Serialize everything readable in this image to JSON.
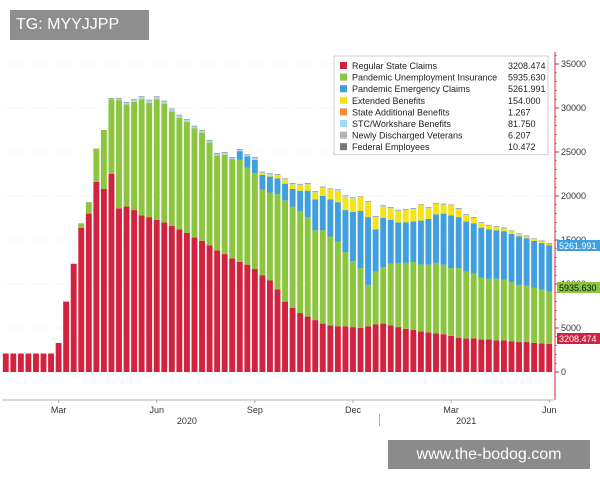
{
  "watermark_top": "TG: MYYJJPP",
  "watermark_bottom": "www.the-bodog.com",
  "chart_data": {
    "type": "bar",
    "stacked": true,
    "title": "",
    "xlabel": "",
    "ylabel": "",
    "ylim": [
      -3000,
      36000
    ],
    "y_ticks": [
      0,
      5000,
      10000,
      15000,
      20000,
      25000,
      30000,
      35000
    ],
    "y_tick_labels": [
      "0",
      "5000",
      "10000",
      "15000",
      "20000",
      "25000",
      "30000",
      "35000"
    ],
    "x_month_labels": [
      {
        "label": "Mar",
        "index": 7
      },
      {
        "label": "Jun",
        "index": 20
      },
      {
        "label": "Sep",
        "index": 33
      },
      {
        "label": "Dec",
        "index": 46
      },
      {
        "label": "Mar",
        "index": 59
      },
      {
        "label": "Jun",
        "index": 72
      }
    ],
    "x_year_labels": [
      {
        "label": "2020",
        "index": 24
      },
      {
        "label": "2021",
        "index": 61
      }
    ],
    "legend_position": "top-right",
    "series": [
      {
        "name": "Regular State Claims",
        "color": "#d1233f",
        "last": "3208.474",
        "values": [
          2100,
          2100,
          2100,
          2100,
          2100,
          2100,
          2100,
          3300,
          8000,
          12300,
          16400,
          18000,
          21600,
          20800,
          22500,
          18600,
          18800,
          18400,
          17800,
          17600,
          17300,
          17000,
          16600,
          16200,
          15800,
          15300,
          14900,
          14400,
          13800,
          13400,
          12900,
          12500,
          12200,
          11700,
          11000,
          10400,
          9400,
          8000,
          7300,
          6700,
          6300,
          5900,
          5500,
          5300,
          5200,
          5200,
          5100,
          5000,
          5200,
          5400,
          5500,
          5300,
          5100,
          4900,
          4800,
          4600,
          4500,
          4400,
          4300,
          4100,
          3900,
          3800,
          3800,
          3700,
          3700,
          3600,
          3600,
          3500,
          3400,
          3400,
          3300,
          3250,
          3208
        ]
      },
      {
        "name": "Pandemic Unemployment Insurance",
        "color": "#8cc63f",
        "last": "5935.630",
        "values": [
          0,
          0,
          0,
          0,
          0,
          0,
          0,
          0,
          0,
          0,
          500,
          1300,
          3800,
          6700,
          8500,
          12300,
          11600,
          12300,
          13200,
          13000,
          13700,
          13500,
          13000,
          12700,
          12600,
          12400,
          12300,
          11700,
          10800,
          11300,
          11300,
          11600,
          11000,
          10900,
          9700,
          10000,
          10800,
          11500,
          11500,
          11600,
          11300,
          10200,
          10600,
          10100,
          9600,
          8400,
          7500,
          6800,
          4700,
          6000,
          6400,
          7000,
          7300,
          7500,
          7700,
          7600,
          7700,
          8000,
          7900,
          7700,
          7900,
          7600,
          7400,
          7000,
          6900,
          7000,
          6900,
          6700,
          6500,
          6400,
          6300,
          6100,
          5936
        ]
      },
      {
        "name": "Pandemic Emergency Claims",
        "color": "#3f9fdf",
        "last": "5261.991",
        "values": [
          0,
          0,
          0,
          0,
          0,
          0,
          0,
          0,
          0,
          0,
          0,
          0,
          0,
          0,
          0,
          0,
          0,
          0,
          0,
          0,
          0,
          0,
          0,
          0,
          0,
          0,
          0,
          0,
          0,
          0,
          0,
          1000,
          1300,
          1500,
          1700,
          1800,
          1800,
          1900,
          2000,
          2300,
          3000,
          3500,
          3900,
          4200,
          4500,
          4800,
          5600,
          6500,
          7700,
          4800,
          5600,
          5000,
          4600,
          4600,
          4600,
          5000,
          5200,
          5500,
          5800,
          6000,
          5800,
          5700,
          5700,
          5700,
          5600,
          5500,
          5500,
          5500,
          5500,
          5400,
          5300,
          5300,
          5262
        ]
      },
      {
        "name": "Extended Benefits",
        "color": "#f5e21a",
        "last": "154.000",
        "values": [
          0,
          0,
          0,
          0,
          0,
          0,
          0,
          0,
          0,
          0,
          0,
          0,
          0,
          0,
          0,
          0,
          0,
          0,
          0,
          0,
          0,
          0,
          0,
          0,
          0,
          0,
          0,
          0,
          0,
          0,
          0,
          0,
          0,
          100,
          150,
          200,
          300,
          400,
          500,
          600,
          700,
          800,
          900,
          1100,
          1300,
          1500,
          1500,
          1500,
          1700,
          1400,
          1300,
          1300,
          1300,
          1400,
          1400,
          1700,
          1200,
          1200,
          1000,
          1100,
          900,
          700,
          600,
          500,
          400,
          350,
          300,
          250,
          220,
          200,
          180,
          170,
          154
        ]
      },
      {
        "name": "State Additional Benefits",
        "color": "#f08c3c",
        "last": "1.267",
        "values": [
          0,
          0,
          0,
          0,
          0,
          0,
          0,
          0,
          0,
          0,
          0,
          0,
          0,
          0,
          0,
          0,
          0,
          0,
          0,
          0,
          0,
          0,
          0,
          0,
          0,
          0,
          0,
          0,
          0,
          0,
          0,
          0,
          0,
          0,
          0,
          0,
          0,
          0,
          0,
          0,
          0,
          0,
          0,
          0,
          0,
          0,
          0,
          0,
          0,
          0,
          0,
          0,
          0,
          0,
          0,
          0,
          0,
          0,
          0,
          0,
          0,
          0,
          0,
          0,
          0,
          0,
          0,
          0,
          0,
          0,
          0,
          0,
          1
        ]
      },
      {
        "name": "STC/Workshare Benefits",
        "color": "#a7d8f2",
        "last": "81.750",
        "values": [
          0,
          0,
          0,
          0,
          0,
          0,
          0,
          0,
          0,
          0,
          0,
          0,
          0,
          0,
          100,
          200,
          250,
          300,
          300,
          300,
          300,
          300,
          300,
          300,
          300,
          250,
          250,
          250,
          250,
          250,
          200,
          200,
          200,
          180,
          180,
          150,
          150,
          150,
          150,
          150,
          130,
          130,
          130,
          120,
          120,
          120,
          110,
          110,
          110,
          100,
          100,
          100,
          100,
          100,
          100,
          100,
          100,
          90,
          90,
          90,
          90,
          90,
          90,
          90,
          90,
          85,
          85,
          85,
          85,
          85,
          85,
          82,
          82
        ]
      },
      {
        "name": "Newly Discharged Veterans",
        "color": "#b5b5b5",
        "last": "6.207",
        "values": [
          0,
          0,
          0,
          0,
          0,
          0,
          0,
          0,
          0,
          0,
          0,
          0,
          0,
          0,
          10,
          10,
          10,
          10,
          10,
          10,
          10,
          10,
          10,
          10,
          10,
          10,
          10,
          10,
          10,
          10,
          10,
          10,
          10,
          10,
          10,
          10,
          10,
          10,
          10,
          10,
          10,
          10,
          10,
          10,
          10,
          10,
          10,
          10,
          10,
          10,
          10,
          10,
          10,
          10,
          10,
          10,
          10,
          10,
          10,
          10,
          10,
          10,
          10,
          10,
          10,
          10,
          10,
          10,
          10,
          10,
          6,
          6,
          6
        ]
      },
      {
        "name": "Federal Employees",
        "color": "#777777",
        "last": "10.472",
        "values": [
          0,
          0,
          0,
          0,
          0,
          0,
          0,
          0,
          0,
          0,
          0,
          0,
          0,
          0,
          15,
          15,
          15,
          15,
          15,
          15,
          15,
          15,
          15,
          15,
          15,
          15,
          15,
          15,
          15,
          15,
          15,
          15,
          15,
          15,
          15,
          15,
          15,
          15,
          15,
          15,
          15,
          15,
          15,
          15,
          15,
          15,
          15,
          15,
          15,
          15,
          15,
          15,
          15,
          15,
          15,
          15,
          15,
          15,
          15,
          15,
          15,
          15,
          15,
          15,
          15,
          15,
          15,
          15,
          15,
          15,
          10,
          10,
          10
        ]
      }
    ],
    "last_value_labels": [
      {
        "text": "5261.991",
        "color": "#3f9fdf"
      },
      {
        "text": "5935.630",
        "color": "#8cc63f"
      },
      {
        "text": "3208.474",
        "color": "#d1233f"
      }
    ]
  }
}
